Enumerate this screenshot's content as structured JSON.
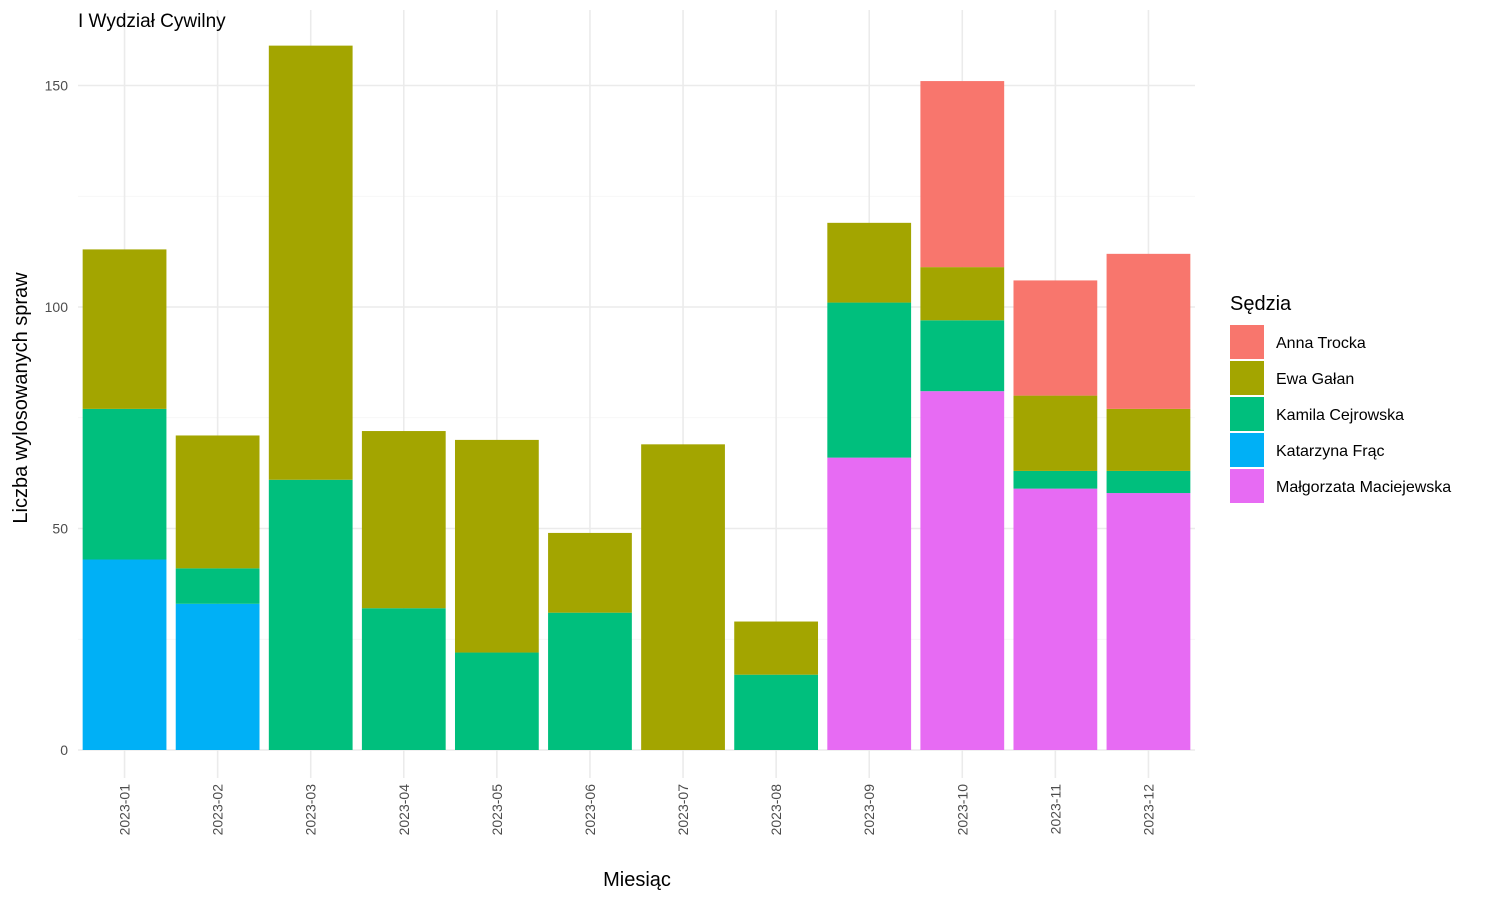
{
  "chart_data": {
    "type": "bar",
    "stacked": true,
    "title": "I Wydział Cywilny",
    "xlabel": "Miesiąc",
    "ylabel": "Liczba wylosowanych spraw",
    "ylim": [
      0,
      162
    ],
    "yticks": [
      0,
      50,
      100,
      150
    ],
    "grid": true,
    "legend_position": "right",
    "legend_title": "Sędzia",
    "categories": [
      "2023-01",
      "2023-02",
      "2023-03",
      "2023-04",
      "2023-05",
      "2023-06",
      "2023-07",
      "2023-08",
      "2023-09",
      "2023-10",
      "2023-11",
      "2023-12"
    ],
    "series": [
      {
        "name": "Anna Trocka",
        "color": "#F8766D",
        "values": [
          0,
          0,
          0,
          0,
          0,
          0,
          0,
          0,
          0,
          42,
          26,
          35
        ]
      },
      {
        "name": "Ewa Gałan",
        "color": "#A3A500",
        "values": [
          36,
          30,
          98,
          40,
          48,
          18,
          69,
          12,
          18,
          12,
          17,
          14
        ]
      },
      {
        "name": "Kamila Cejrowska",
        "color": "#00BF7D",
        "values": [
          34,
          8,
          61,
          32,
          22,
          31,
          0,
          17,
          35,
          16,
          4,
          5
        ]
      },
      {
        "name": "Katarzyna Frąc",
        "color": "#00B0F6",
        "values": [
          43,
          33,
          0,
          0,
          0,
          0,
          0,
          0,
          0,
          0,
          0,
          0
        ]
      },
      {
        "name": "Małgorzata Maciejewska",
        "color": "#E76BF3",
        "values": [
          0,
          0,
          0,
          0,
          0,
          0,
          0,
          0,
          66,
          81,
          59,
          58
        ]
      }
    ]
  }
}
